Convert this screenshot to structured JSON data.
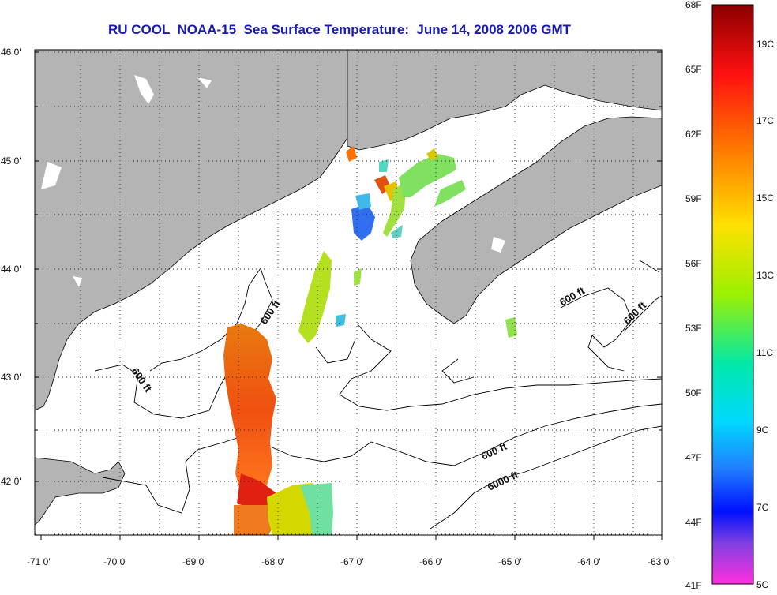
{
  "title": "RU COOL  NOAA-15  Sea Surface Temperature:  June 14, 2008 2006 GMT",
  "lat_labels": [
    "46 0'",
    "45 0'",
    "44 0'",
    "43 0'",
    "42 0'"
  ],
  "lon_labels": [
    "-71 0'",
    "-70 0'",
    "-69 0'",
    "-68 0'",
    "-67 0'",
    "-66 0'",
    "-65 0'",
    "-64 0'",
    "-63 0'"
  ],
  "contour_labels": [
    "600 ft",
    "600 ft",
    "600 ft",
    "600 ft",
    "600 ft",
    "6000 ft"
  ],
  "colorbar": {
    "fahrenheit": [
      "68F",
      "65F",
      "62F",
      "59F",
      "56F",
      "53F",
      "50F",
      "47F",
      "44F",
      "41F"
    ],
    "celsius": [
      "19C",
      "17C",
      "15C",
      "13C",
      "11C",
      "9C",
      "7C",
      "5C"
    ]
  },
  "colors": {
    "land": "#b4b4b4",
    "title": "#1a1ab4"
  }
}
